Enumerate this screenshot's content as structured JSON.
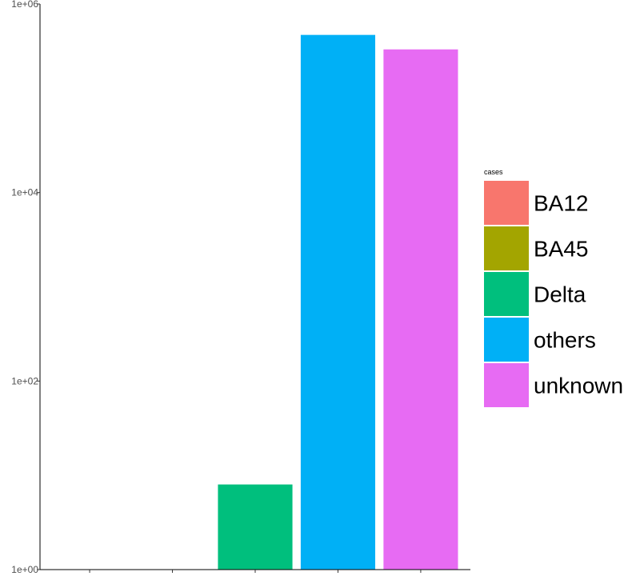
{
  "chart_data": {
    "type": "bar",
    "scale_y": "log10",
    "categories": [
      "BA12",
      "BA45",
      "Delta",
      "others",
      "unknown"
    ],
    "values": [
      1,
      1,
      8,
      470000,
      330000
    ],
    "colors": [
      "#F8766D",
      "#A3A500",
      "#00BF7D",
      "#00B0F6",
      "#E76BF3"
    ],
    "ylim": [
      1,
      1000000
    ],
    "y_ticks": [
      {
        "value": 1,
        "label": "1e+00"
      },
      {
        "value": 100,
        "label": "1e+02"
      },
      {
        "value": 10000,
        "label": "1e+04"
      },
      {
        "value": 1000000,
        "label": "1e+06"
      }
    ],
    "x_tick_labels_shown": false,
    "grid": false,
    "legend": {
      "title": "cases",
      "position": "right",
      "entries": [
        "BA12",
        "BA45",
        "Delta",
        "others",
        "unknown"
      ]
    }
  }
}
